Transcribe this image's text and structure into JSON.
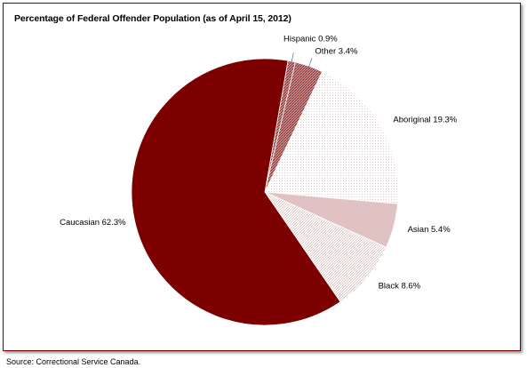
{
  "chart_data": {
    "type": "pie",
    "title": "Percentage of Federal Offender Population (as of April 15, 2012)",
    "start_category": "Hispanic",
    "slices": [
      {
        "label": "Hispanic",
        "value": 0.9,
        "display": "Hispanic 0.9%",
        "color": "#b06a6a",
        "pattern": "hatch-dark"
      },
      {
        "label": "Other",
        "value": 3.4,
        "display": "Other 3.4%",
        "color": "#c48a8a",
        "pattern": "hatch-dark"
      },
      {
        "label": "Aboriginal",
        "value": 19.3,
        "display": "Aboriginal 19.3%",
        "color": "#faf4f4",
        "pattern": "dots-light"
      },
      {
        "label": "Asian",
        "value": 5.4,
        "display": "Asian 5.4%",
        "color": "#e0c2c2",
        "pattern": "none"
      },
      {
        "label": "Black",
        "value": 8.6,
        "display": "Black 8.6%",
        "color": "#f7eeee",
        "pattern": "hatch-light"
      },
      {
        "label": "Caucasian",
        "value": 62.3,
        "display": "Caucasian 62.3%",
        "color": "#7d0000",
        "pattern": "none"
      }
    ]
  },
  "footer": {
    "source": "Source:  Correctional Service Canada."
  }
}
